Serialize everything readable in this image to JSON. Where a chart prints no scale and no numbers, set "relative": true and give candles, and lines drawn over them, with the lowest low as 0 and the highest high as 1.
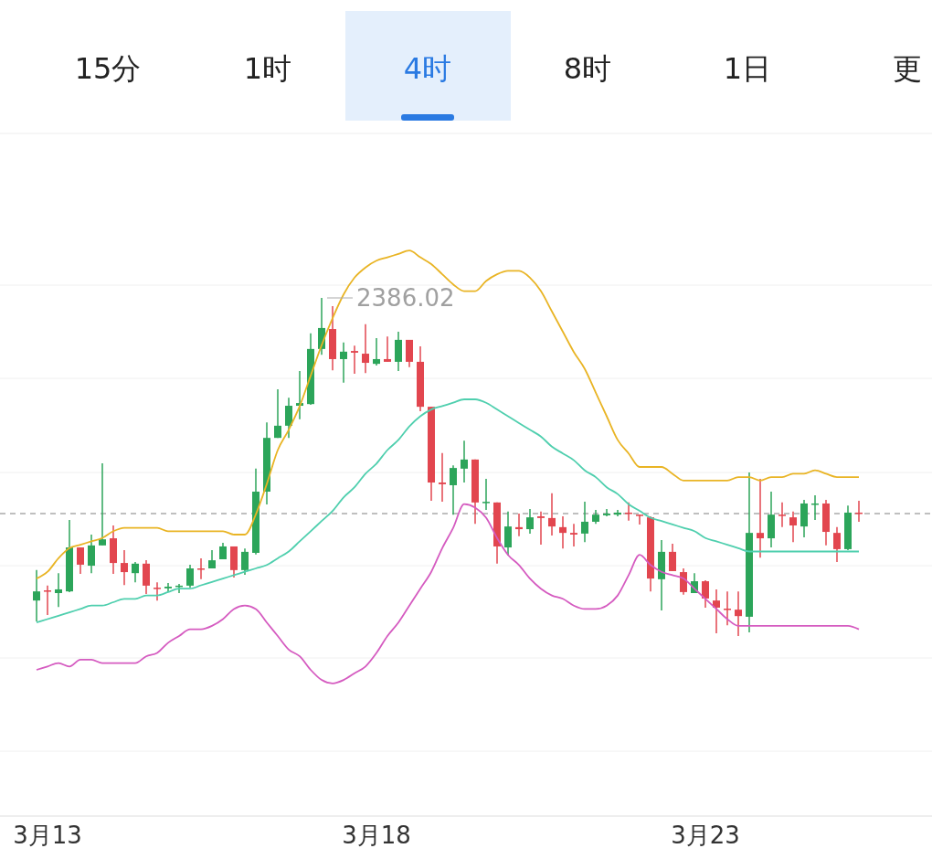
{
  "chart_data": {
    "type": "candlestick",
    "relative": true,
    "grid": true,
    "annotations": [
      "15分",
      "1时",
      "4时",
      "8时",
      "1日",
      "更",
      "2386.02"
    ],
    "categories": [
      null,
      "3月13",
      null,
      null,
      null,
      null,
      null,
      null,
      null,
      null,
      null,
      null,
      null,
      null,
      null,
      null,
      null,
      null,
      null,
      null,
      null,
      null,
      null,
      null,
      null,
      null,
      null,
      null,
      null,
      null,
      null,
      "3月18",
      null,
      null,
      null,
      null,
      null,
      null,
      null,
      null,
      null,
      null,
      null,
      null,
      null,
      null,
      null,
      null,
      null,
      null,
      null,
      null,
      null,
      null,
      null,
      null,
      null,
      null,
      null,
      null,
      null,
      "3月23",
      null,
      null,
      null,
      null,
      null,
      null,
      null,
      null,
      null,
      null,
      null,
      null,
      null,
      null
    ],
    "ohlc": [
      [
        0.105,
        0.195,
        0.043,
        0.132
      ],
      [
        0.135,
        0.149,
        0.062,
        0.132
      ],
      [
        0.127,
        0.186,
        0.086,
        0.138
      ],
      [
        0.132,
        0.343,
        0.13,
        0.262
      ],
      [
        0.262,
        0.262,
        0.184,
        0.211
      ],
      [
        0.208,
        0.3,
        0.186,
        0.268
      ],
      [
        0.268,
        0.511,
        0.268,
        0.286
      ],
      [
        0.289,
        0.327,
        0.184,
        0.216
      ],
      [
        0.216,
        0.254,
        0.151,
        0.189
      ],
      [
        0.186,
        0.219,
        0.159,
        0.214
      ],
      [
        0.214,
        0.224,
        0.124,
        0.149
      ],
      [
        0.143,
        0.159,
        0.105,
        0.141
      ],
      [
        0.141,
        0.157,
        0.13,
        0.146
      ],
      [
        0.146,
        0.154,
        0.127,
        0.149
      ],
      [
        0.149,
        0.211,
        0.143,
        0.2
      ],
      [
        0.2,
        0.23,
        0.168,
        0.197
      ],
      [
        0.2,
        0.254,
        0.2,
        0.224
      ],
      [
        0.227,
        0.276,
        0.227,
        0.265
      ],
      [
        0.265,
        0.265,
        0.173,
        0.195
      ],
      [
        0.195,
        0.259,
        0.181,
        0.249
      ],
      [
        0.246,
        0.495,
        0.241,
        0.427
      ],
      [
        0.427,
        0.632,
        0.389,
        0.586
      ],
      [
        0.586,
        0.73,
        0.586,
        0.622
      ],
      [
        0.622,
        0.705,
        0.586,
        0.681
      ],
      [
        0.681,
        0.784,
        0.641,
        0.689
      ],
      [
        0.686,
        0.895,
        0.684,
        0.849
      ],
      [
        0.849,
        1,
        0.832,
        0.911
      ],
      [
        0.908,
        0.976,
        0.786,
        0.819
      ],
      [
        0.819,
        0.868,
        0.749,
        0.841
      ],
      [
        0.843,
        0.859,
        0.776,
        0.838
      ],
      [
        0.835,
        0.922,
        0.778,
        0.808
      ],
      [
        0.805,
        0.881,
        0.8,
        0.819
      ],
      [
        0.819,
        0.886,
        0.811,
        0.811
      ],
      [
        0.811,
        0.9,
        0.784,
        0.876
      ],
      [
        0.876,
        0.876,
        0.795,
        0.811
      ],
      [
        0.811,
        0.857,
        0.665,
        0.678
      ],
      [
        0.678,
        0.678,
        0.4,
        0.454
      ],
      [
        0.454,
        0.541,
        0.397,
        0.449
      ],
      [
        0.446,
        0.505,
        0.359,
        0.497
      ],
      [
        0.495,
        0.578,
        0.454,
        0.522
      ],
      [
        0.522,
        0.522,
        0.332,
        0.395
      ],
      [
        0.395,
        0.465,
        0.373,
        0.397
      ],
      [
        0.395,
        0.395,
        0.214,
        0.265
      ],
      [
        0.262,
        0.368,
        0.238,
        0.324
      ],
      [
        0.322,
        0.362,
        0.295,
        0.316
      ],
      [
        0.316,
        0.376,
        0.303,
        0.351
      ],
      [
        0.354,
        0.368,
        0.27,
        0.349
      ],
      [
        0.349,
        0.422,
        0.297,
        0.324
      ],
      [
        0.322,
        0.354,
        0.259,
        0.305
      ],
      [
        0.305,
        0.332,
        0.265,
        0.3
      ],
      [
        0.303,
        0.397,
        0.278,
        0.338
      ],
      [
        0.338,
        0.373,
        0.332,
        0.359
      ],
      [
        0.357,
        0.376,
        0.354,
        0.362
      ],
      [
        0.359,
        0.373,
        0.354,
        0.365
      ],
      [
        0.365,
        0.395,
        0.341,
        0.362
      ],
      [
        0.359,
        0.359,
        0.33,
        0.357
      ],
      [
        0.351,
        0.354,
        0.132,
        0.17
      ],
      [
        0.168,
        0.284,
        0.076,
        0.249
      ],
      [
        0.249,
        0.273,
        0.192,
        0.192
      ],
      [
        0.189,
        0.2,
        0.122,
        0.13
      ],
      [
        0.127,
        0.186,
        0.127,
        0.162
      ],
      [
        0.162,
        0.165,
        0.084,
        0.111
      ],
      [
        0.105,
        0.138,
        0.008,
        0.084
      ],
      [
        0.081,
        0.132,
        0.032,
        0.078
      ],
      [
        0.078,
        0.132,
        0,
        0.059
      ],
      [
        0.057,
        0.484,
        0.011,
        0.305
      ],
      [
        0.305,
        0.465,
        0.232,
        0.289
      ],
      [
        0.289,
        0.427,
        0.262,
        0.359
      ],
      [
        0.359,
        0.395,
        0.322,
        0.357
      ],
      [
        0.351,
        0.368,
        0.278,
        0.327
      ],
      [
        0.324,
        0.403,
        0.292,
        0.392
      ],
      [
        0.389,
        0.416,
        0.343,
        0.392
      ],
      [
        0.392,
        0.403,
        0.268,
        0.308
      ],
      [
        0.305,
        0.322,
        0.219,
        0.257
      ],
      [
        0.257,
        0.386,
        0.254,
        0.365
      ],
      [
        0.365,
        0.4,
        0.338,
        0.362
      ]
    ],
    "colors": [
      "#2ca55a",
      "#e2464f",
      "#2ca55a",
      "#2ca55a",
      "#e2464f",
      "#2ca55a",
      "#2ca55a",
      "#e2464f",
      "#e2464f",
      "#2ca55a",
      "#e2464f",
      "#e2464f",
      "#2ca55a",
      "#2ca55a",
      "#2ca55a",
      "#e2464f",
      "#2ca55a",
      "#2ca55a",
      "#e2464f",
      "#2ca55a",
      "#2ca55a",
      "#2ca55a",
      "#2ca55a",
      "#2ca55a",
      "#2ca55a",
      "#2ca55a",
      "#2ca55a",
      "#e2464f",
      "#2ca55a",
      "#e2464f",
      "#e2464f",
      "#2ca55a",
      "#e2464f",
      "#2ca55a",
      "#e2464f",
      "#e2464f",
      "#e2464f",
      "#e2464f",
      "#2ca55a",
      "#2ca55a",
      "#e2464f",
      "#2ca55a",
      "#e2464f",
      "#2ca55a",
      "#e2464f",
      "#2ca55a",
      "#e2464f",
      "#e2464f",
      "#e2464f",
      "#e2464f",
      "#2ca55a",
      "#2ca55a",
      "#2ca55a",
      "#2ca55a",
      "#e2464f",
      "#e2464f",
      "#e2464f",
      "#2ca55a",
      "#e2464f",
      "#e2464f",
      "#2ca55a",
      "#e2464f",
      "#e2464f",
      "#e2464f",
      "#e2464f",
      "#2ca55a",
      "#e2464f",
      "#2ca55a",
      "#e2464f",
      "#e2464f",
      "#2ca55a",
      "#2ca55a",
      "#e2464f",
      "#e2464f",
      "#2ca55a",
      "#e2464f"
    ],
    "series": [
      {
        "type": "line",
        "color": "#e9b424",
        "values": [
          0.17,
          0.19,
          0.23,
          0.26,
          0.27,
          0.28,
          0.29,
          0.31,
          0.32,
          0.32,
          0.32,
          0.32,
          0.31,
          0.31,
          0.31,
          0.31,
          0.31,
          0.31,
          0.3,
          0.3,
          0.36,
          0.45,
          0.55,
          0.61,
          0.68,
          0.77,
          0.86,
          0.94,
          1.01,
          1.06,
          1.09,
          1.11,
          1.12,
          1.13,
          1.14,
          1.12,
          1.1,
          1.07,
          1.04,
          1.02,
          1.02,
          1.05,
          1.07,
          1.08,
          1.08,
          1.06,
          1.02,
          0.96,
          0.9,
          0.84,
          0.79,
          0.72,
          0.65,
          0.58,
          0.54,
          0.5,
          0.5,
          0.5,
          0.48,
          0.46,
          0.46,
          0.46,
          0.46,
          0.46,
          0.47,
          0.47,
          0.46,
          0.47,
          0.47,
          0.48,
          0.48,
          0.49,
          0.48,
          0.47,
          0.47,
          0.47
        ]
      },
      {
        "type": "line",
        "color": "#4fcfae",
        "values": [
          0.04,
          0.05,
          0.06,
          0.07,
          0.08,
          0.09,
          0.09,
          0.1,
          0.11,
          0.11,
          0.12,
          0.12,
          0.13,
          0.14,
          0.14,
          0.15,
          0.16,
          0.17,
          0.18,
          0.19,
          0.2,
          0.21,
          0.23,
          0.25,
          0.28,
          0.31,
          0.34,
          0.37,
          0.41,
          0.44,
          0.48,
          0.51,
          0.55,
          0.58,
          0.62,
          0.65,
          0.67,
          0.68,
          0.69,
          0.7,
          0.7,
          0.69,
          0.67,
          0.65,
          0.63,
          0.61,
          0.59,
          0.56,
          0.54,
          0.52,
          0.49,
          0.47,
          0.44,
          0.42,
          0.39,
          0.37,
          0.35,
          0.34,
          0.33,
          0.32,
          0.31,
          0.29,
          0.28,
          0.27,
          0.26,
          0.25,
          0.25,
          0.25,
          0.25,
          0.25,
          0.25,
          0.25,
          0.25,
          0.25,
          0.25,
          0.25
        ]
      },
      {
        "type": "line",
        "color": "#d55bc0",
        "values": [
          -0.1,
          -0.09,
          -0.08,
          -0.09,
          -0.07,
          -0.07,
          -0.08,
          -0.08,
          -0.08,
          -0.08,
          -0.06,
          -0.05,
          -0.02,
          0.0,
          0.02,
          0.02,
          0.03,
          0.05,
          0.08,
          0.09,
          0.08,
          0.04,
          0.0,
          -0.04,
          -0.06,
          -0.1,
          -0.13,
          -0.14,
          -0.13,
          -0.11,
          -0.09,
          -0.05,
          0.0,
          0.04,
          0.09,
          0.14,
          0.19,
          0.26,
          0.32,
          0.39,
          0.38,
          0.35,
          0.29,
          0.24,
          0.21,
          0.17,
          0.14,
          0.12,
          0.11,
          0.09,
          0.08,
          0.08,
          0.09,
          0.12,
          0.18,
          0.24,
          0.21,
          0.19,
          0.18,
          0.17,
          0.14,
          0.11,
          0.08,
          0.05,
          0.03,
          0.03,
          0.03,
          0.03,
          0.03,
          0.03,
          0.03,
          0.03,
          0.03,
          0.03,
          0.03,
          0.02
        ]
      }
    ],
    "ref_lines": [
      {
        "axis": "y",
        "value": 0.362,
        "color": "#aaaaaa",
        "line_style": "dashed"
      }
    ]
  }
}
